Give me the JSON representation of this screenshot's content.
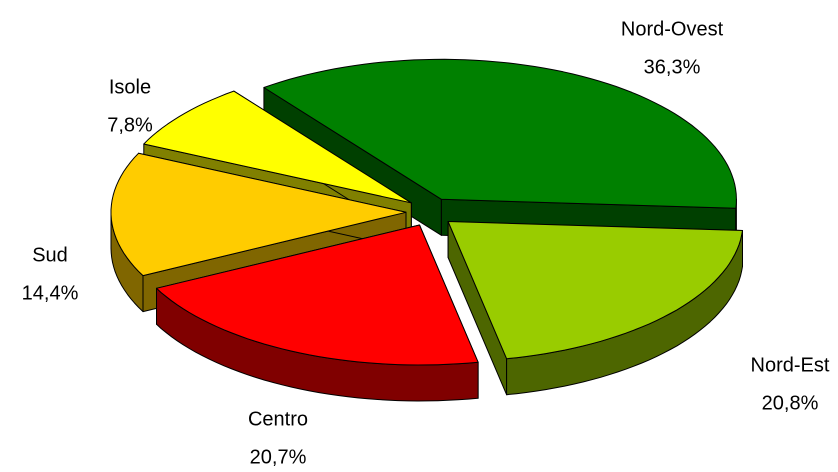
{
  "chart_data": {
    "type": "pie",
    "categories": [
      "Nord-Ovest",
      "Nord-Est",
      "Centro",
      "Sud",
      "Isole"
    ],
    "values": [
      36.3,
      20.8,
      20.7,
      14.4,
      7.8
    ],
    "value_labels": [
      "36,3%",
      "20,8%",
      "20,7%",
      "14,4%",
      "7,8%"
    ],
    "colors": [
      "#008000",
      "#99cc00",
      "#ff0000",
      "#ffcc00",
      "#ffff00"
    ]
  }
}
